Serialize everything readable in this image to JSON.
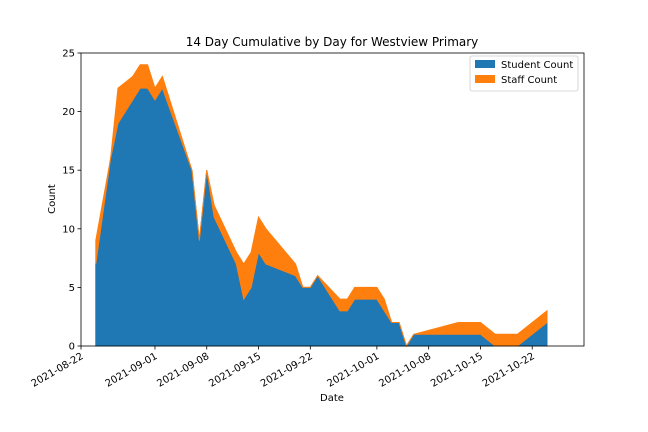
{
  "chart_data": {
    "type": "area",
    "stacked": true,
    "title": "14 Day Cumulative by Day for Westview Primary",
    "xlabel": "Date",
    "ylabel": "Count",
    "ylim": [
      0,
      25
    ],
    "xlim": [
      "2021-08-22",
      "2021-10-29"
    ],
    "yticks": [
      "0",
      "5",
      "10",
      "15",
      "20",
      "25"
    ],
    "xticks": [
      "2021-08-22",
      "2021-09-01",
      "2021-09-08",
      "2021-09-15",
      "2021-09-22",
      "2021-10-01",
      "2021-10-08",
      "2021-10-15",
      "2021-10-22"
    ],
    "grid": false,
    "legend_position": "top-right",
    "x": [
      "2021-08-24",
      "2021-08-26",
      "2021-08-27",
      "2021-08-29",
      "2021-08-30",
      "2021-08-31",
      "2021-09-01",
      "2021-09-02",
      "2021-09-06",
      "2021-09-07",
      "2021-09-08",
      "2021-09-09",
      "2021-09-12",
      "2021-09-13",
      "2021-09-14",
      "2021-09-15",
      "2021-09-16",
      "2021-09-20",
      "2021-09-21",
      "2021-09-22",
      "2021-09-23",
      "2021-09-26",
      "2021-09-27",
      "2021-09-28",
      "2021-09-29",
      "2021-10-01",
      "2021-10-02",
      "2021-10-03",
      "2021-10-04",
      "2021-10-05",
      "2021-10-06",
      "2021-10-12",
      "2021-10-15",
      "2021-10-17",
      "2021-10-19",
      "2021-10-20",
      "2021-10-24"
    ],
    "series": [
      {
        "name": "Student Count",
        "color": "#1f77b4",
        "values": [
          7,
          16,
          19,
          21,
          22,
          22,
          21,
          22,
          15,
          9,
          15,
          11,
          7,
          4,
          5,
          8,
          7,
          6,
          5,
          5,
          6,
          3,
          3,
          4,
          4,
          4,
          3,
          2,
          2,
          0,
          1,
          1,
          1,
          0,
          0,
          0,
          2
        ]
      },
      {
        "name": "Staff Count",
        "color": "#ff7f0e",
        "values": [
          2,
          0,
          3,
          2,
          2,
          2,
          1,
          1,
          0,
          0,
          0,
          1,
          1,
          3,
          3,
          3,
          3,
          1,
          0,
          0,
          0,
          1,
          1,
          1,
          1,
          1,
          1,
          0,
          0,
          0,
          0,
          1,
          1,
          1,
          1,
          1,
          1
        ]
      }
    ]
  }
}
